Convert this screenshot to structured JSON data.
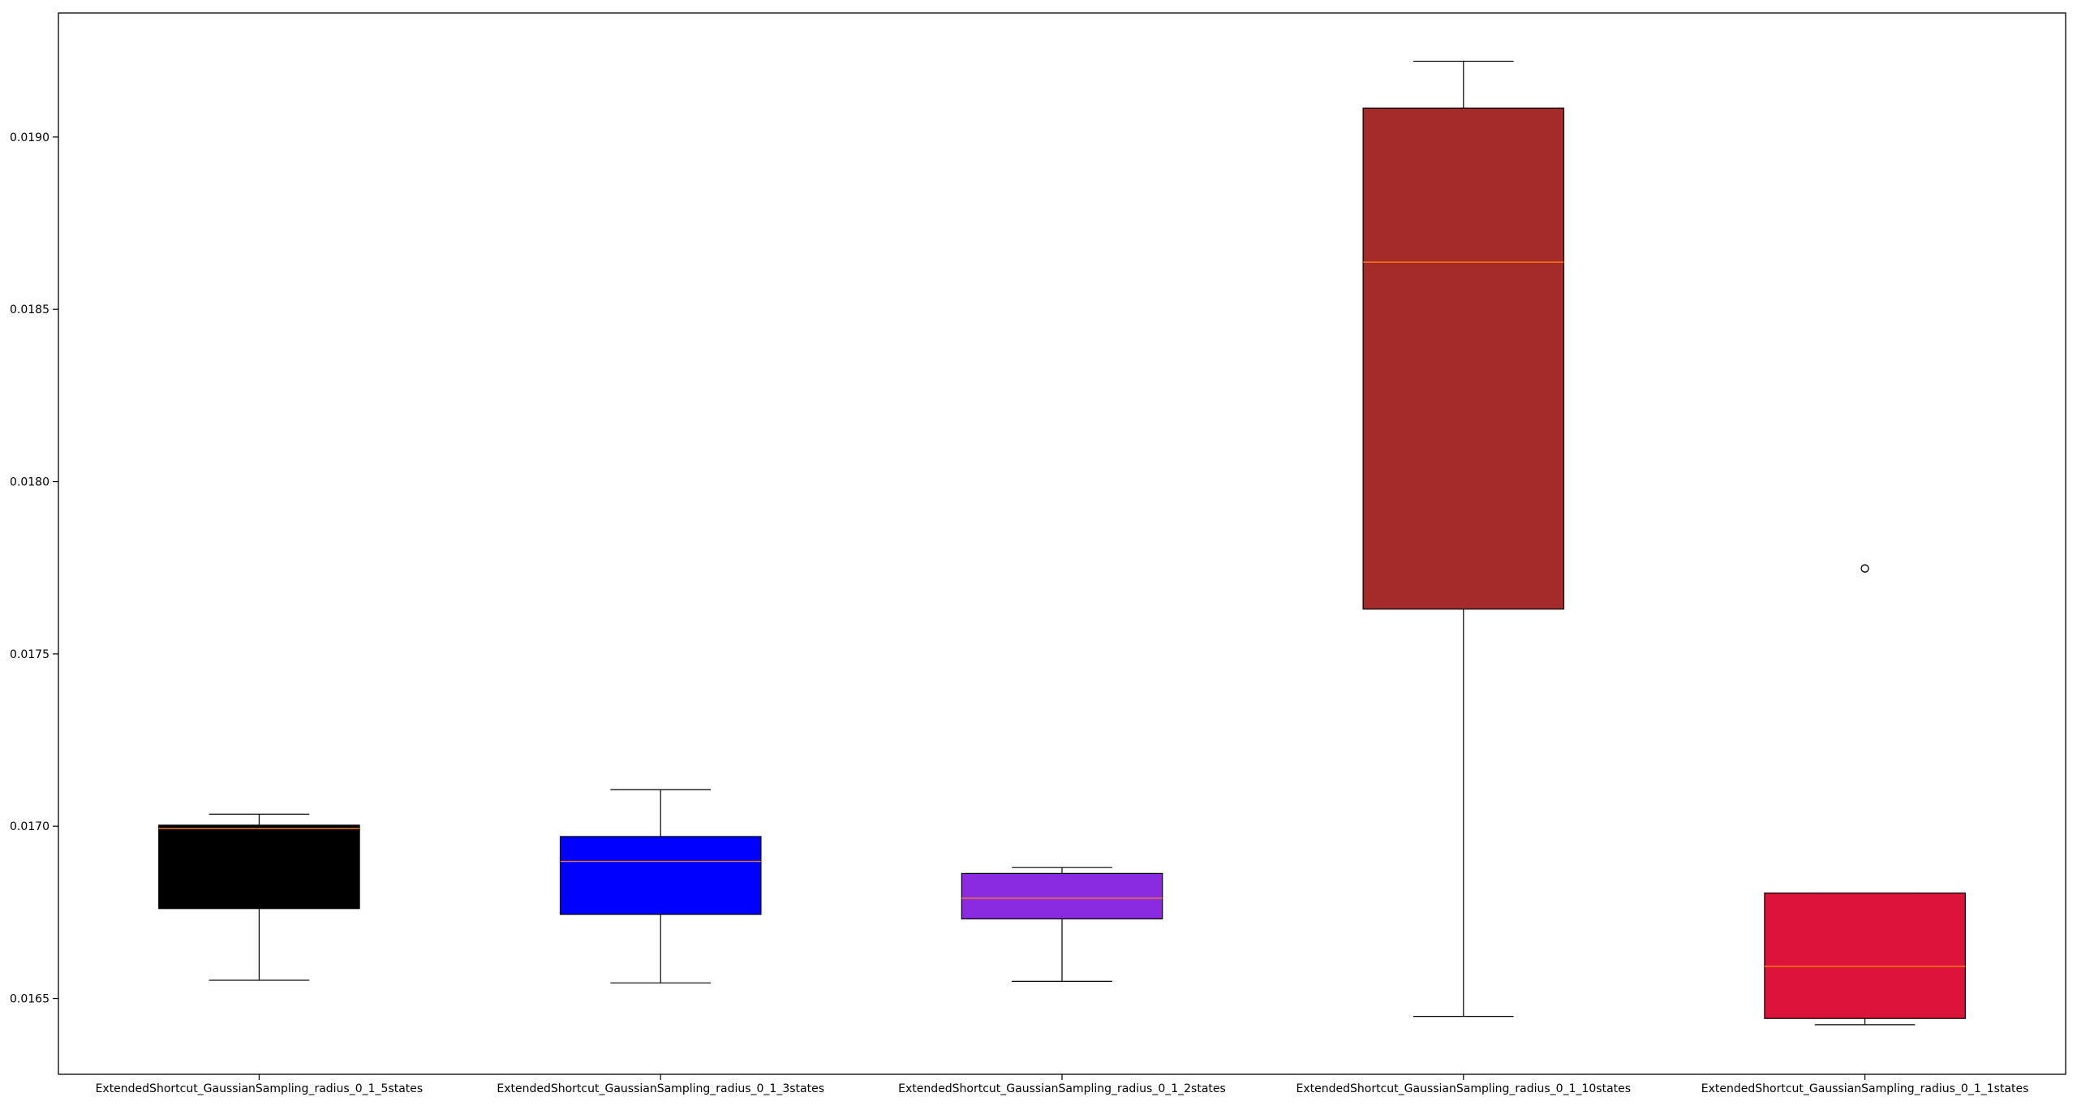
{
  "chart_data": {
    "type": "box",
    "title": "",
    "xlabel": "",
    "ylabel": "",
    "ylim": [
      0.01628,
      0.01936
    ],
    "yticks": [
      0.0165,
      0.017,
      0.0175,
      0.018,
      0.0185,
      0.019
    ],
    "ytick_labels": [
      "0.0165",
      "0.0170",
      "0.0175",
      "0.0180",
      "0.0185",
      "0.0190"
    ],
    "grid": false,
    "categories": [
      "ExtendedShortcut_GaussianSampling_radius_0_1_5states",
      "ExtendedShortcut_GaussianSampling_radius_0_1_3states",
      "ExtendedShortcut_GaussianSampling_radius_0_1_2states",
      "ExtendedShortcut_GaussianSampling_radius_0_1_10states",
      "ExtendedShortcut_GaussianSampling_radius_0_1_1states"
    ],
    "boxes": [
      {
        "whisker_low": 0.016553,
        "q1": 0.016761,
        "median": 0.016993,
        "q3": 0.017003,
        "whisker_high": 0.017035,
        "outliers": [],
        "color": "#000000"
      },
      {
        "whisker_low": 0.016545,
        "q1": 0.016744,
        "median": 0.016898,
        "q3": 0.01697,
        "whisker_high": 0.017106,
        "outliers": [],
        "color": "#0000ff"
      },
      {
        "whisker_low": 0.01655,
        "q1": 0.016731,
        "median": 0.016791,
        "q3": 0.016863,
        "whisker_high": 0.01688,
        "outliers": [],
        "color": "#8a2be2"
      },
      {
        "whisker_low": 0.016448,
        "q1": 0.01763,
        "median": 0.018637,
        "q3": 0.019084,
        "whisker_high": 0.01922,
        "outliers": [],
        "color": "#a52a2a"
      },
      {
        "whisker_low": 0.016424,
        "q1": 0.016442,
        "median": 0.016593,
        "q3": 0.016806,
        "whisker_high": 0.016806,
        "outliers": [
          0.017748
        ],
        "color": "#dc143c"
      }
    ],
    "median_color": "#ff7f0e",
    "edge_color": "#000000"
  }
}
